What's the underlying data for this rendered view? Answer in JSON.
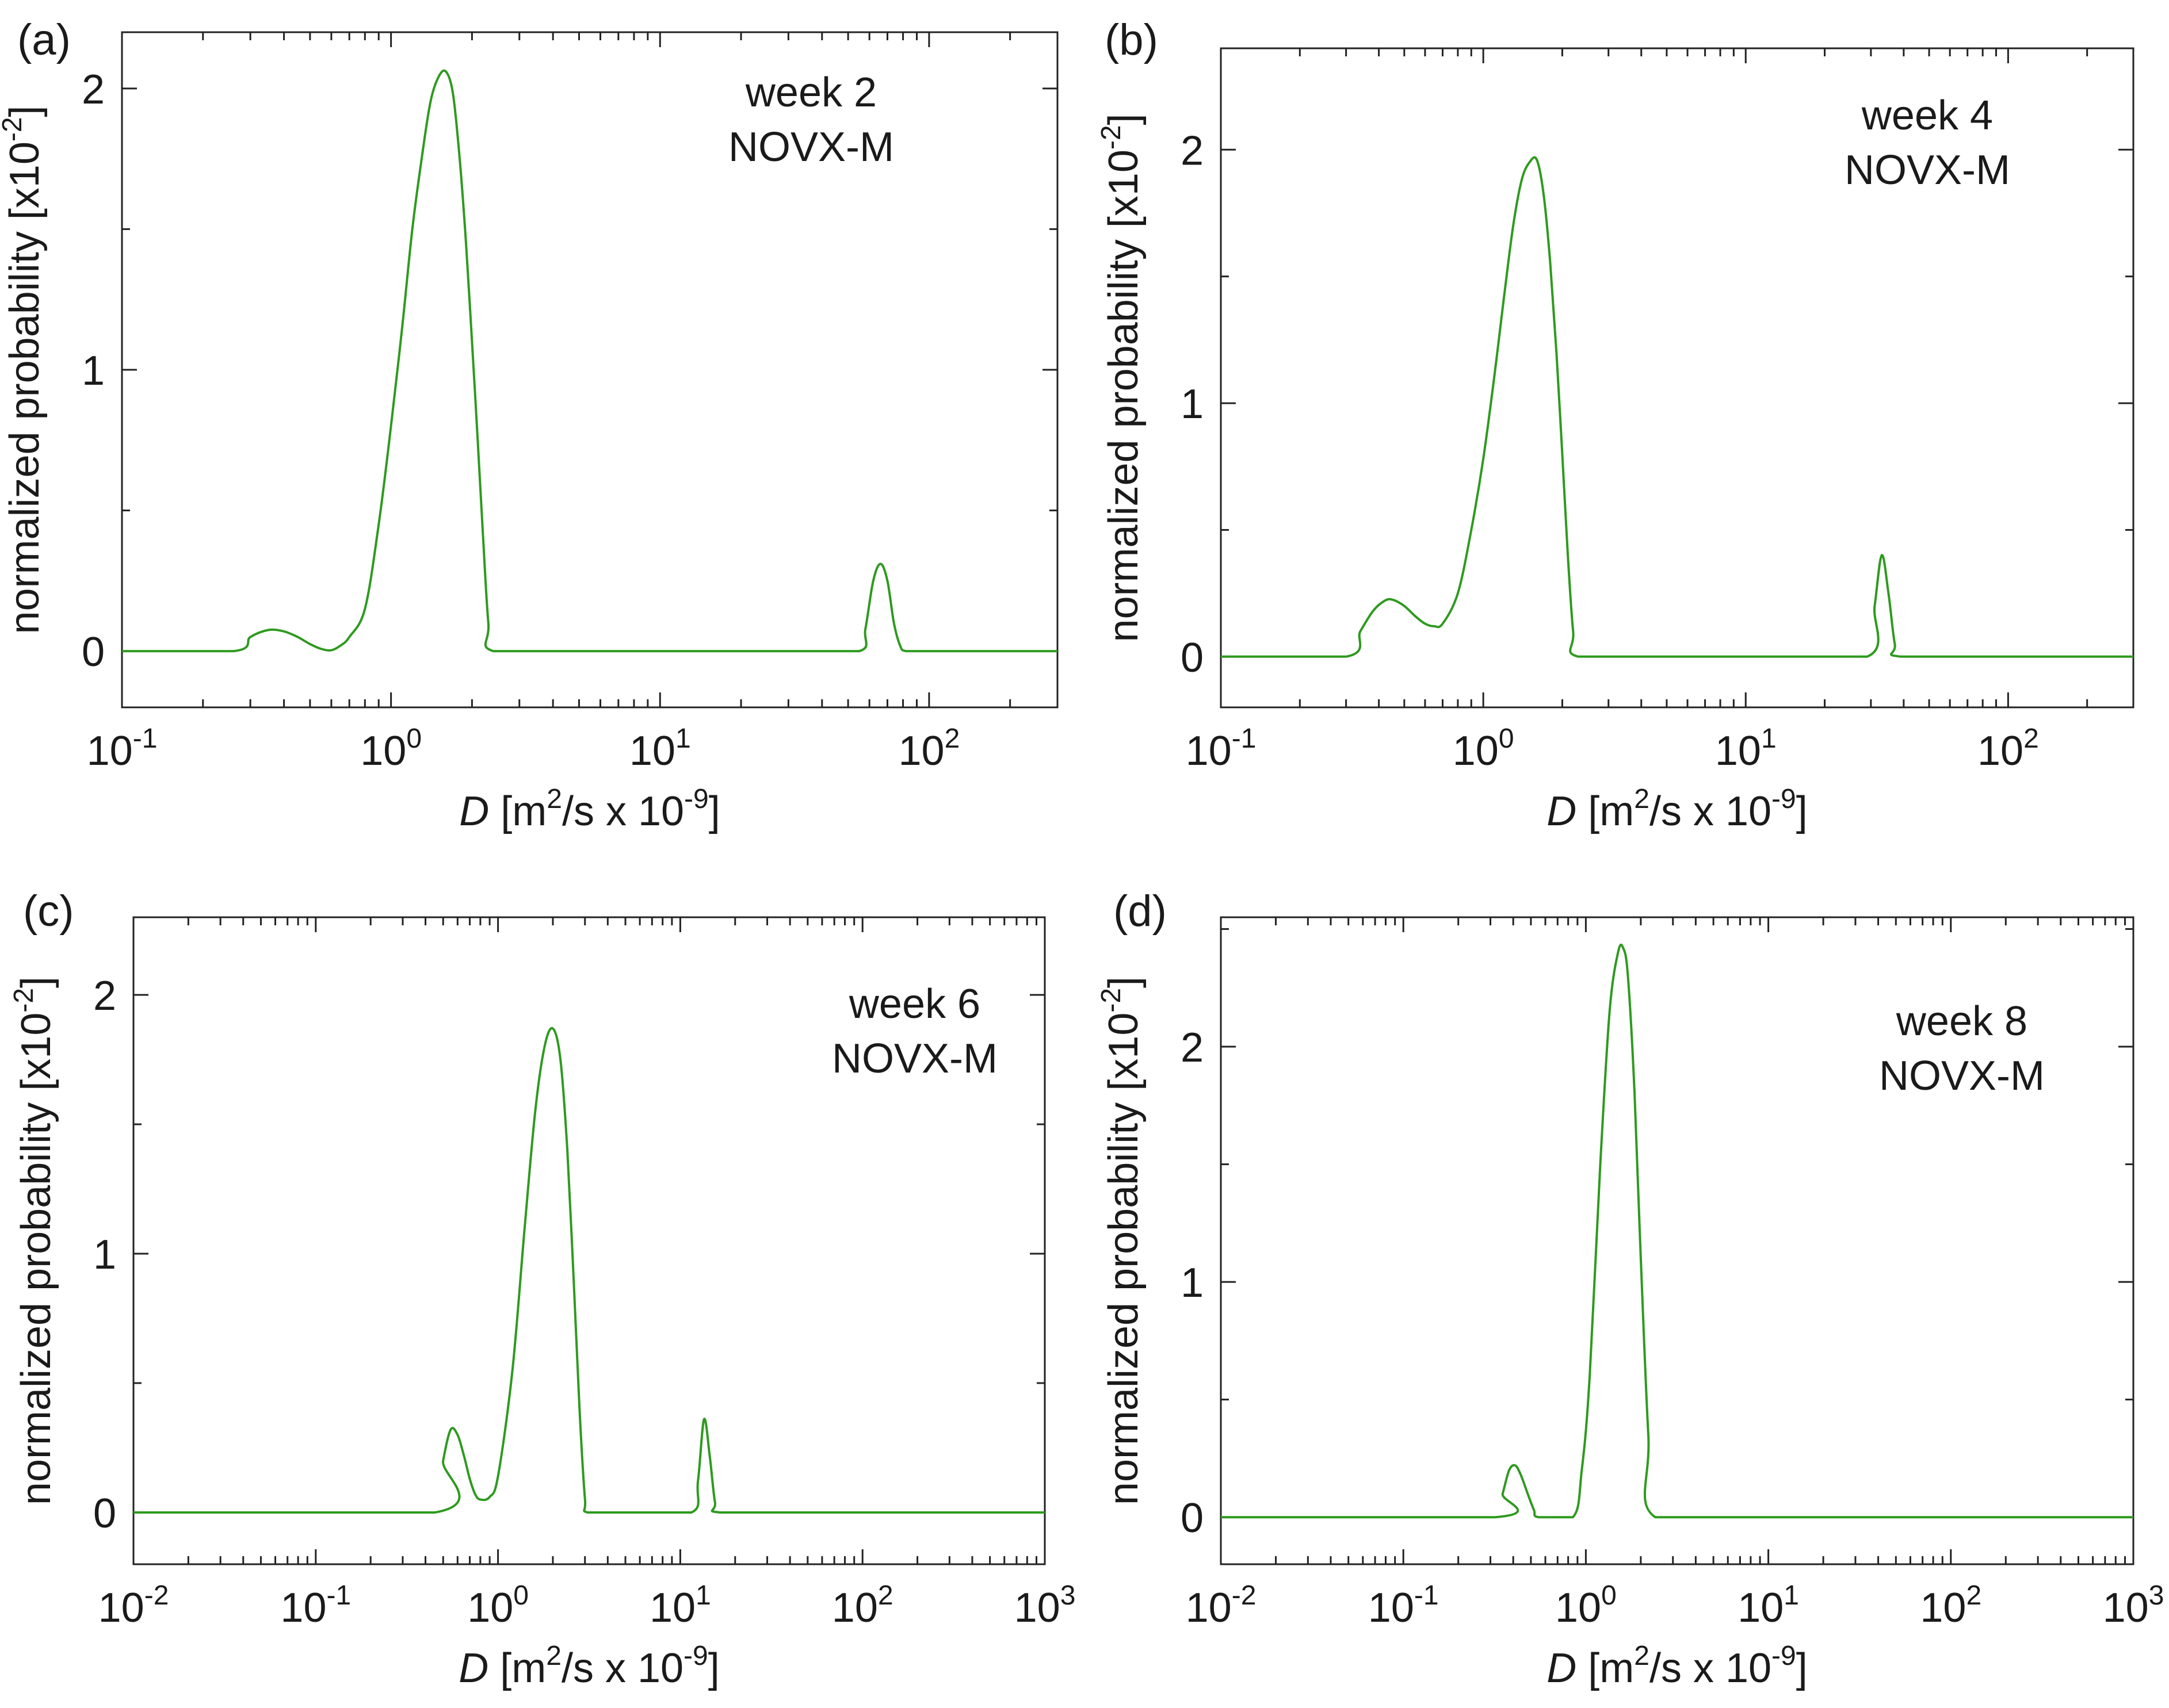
{
  "chart_data": [
    {
      "type": "line",
      "panel_label": "(a)",
      "annotation": [
        "week 2",
        "NOVX-M"
      ],
      "xlabel": {
        "symbol": "D",
        "text_a": " [m",
        "sup_a": "2",
        "text_b": "/s x 10",
        "sup_b": "-9",
        "text_c": "]"
      },
      "ylabel": {
        "text": "normalized probability [x10",
        "sup": "-2",
        "end": "]"
      },
      "xscale": "log",
      "xlim": [
        0.1,
        300
      ],
      "ylim": [
        -0.2,
        2.2
      ],
      "xticks": [
        {
          "base": "10",
          "exp": "-1",
          "value": 0.1
        },
        {
          "base": "10",
          "exp": "0",
          "value": 1
        },
        {
          "base": "10",
          "exp": "1",
          "value": 10
        },
        {
          "base": "10",
          "exp": "2",
          "value": 100
        }
      ],
      "yticks": [
        {
          "label": "0",
          "value": 0
        },
        {
          "label": "1",
          "value": 1
        },
        {
          "label": "2",
          "value": 2
        }
      ],
      "series": [
        {
          "name": "week 2 NOVX-M",
          "color": "#2e9a1f",
          "x": [
            0.1,
            0.26,
            0.3,
            0.35,
            0.4,
            0.45,
            0.5,
            0.55,
            0.6,
            0.65,
            0.7,
            0.8,
            0.9,
            1.0,
            1.1,
            1.2,
            1.3,
            1.4,
            1.5,
            1.6,
            1.7,
            1.8,
            1.9,
            2.0,
            2.1,
            2.2,
            2.3,
            2.4,
            5,
            10,
            30,
            55,
            58,
            62,
            66,
            70,
            74,
            78,
            82,
            100,
            300
          ],
          "y": [
            0,
            0,
            0.05,
            0.075,
            0.07,
            0.05,
            0.025,
            0.008,
            0.003,
            0.02,
            0.05,
            0.15,
            0.45,
            0.8,
            1.15,
            1.5,
            1.75,
            1.95,
            2.04,
            2.06,
            1.98,
            1.75,
            1.45,
            1.1,
            0.75,
            0.4,
            0.1,
            0,
            0,
            0,
            0,
            0,
            0.08,
            0.25,
            0.31,
            0.25,
            0.1,
            0.02,
            0,
            0,
            0
          ]
        }
      ]
    },
    {
      "type": "line",
      "panel_label": "(b)",
      "annotation": [
        "week 4",
        "NOVX-M"
      ],
      "xlabel": {
        "symbol": "D",
        "text_a": " [m",
        "sup_a": "2",
        "text_b": "/s x 10",
        "sup_b": "-9",
        "text_c": "]"
      },
      "ylabel": {
        "text": "normalized probability [x10",
        "sup": "-2",
        "end": "]"
      },
      "xscale": "log",
      "xlim": [
        0.1,
        300
      ],
      "ylim": [
        -0.2,
        2.4
      ],
      "xticks": [
        {
          "base": "10",
          "exp": "-1",
          "value": 0.1
        },
        {
          "base": "10",
          "exp": "0",
          "value": 1
        },
        {
          "base": "10",
          "exp": "1",
          "value": 10
        },
        {
          "base": "10",
          "exp": "2",
          "value": 100
        }
      ],
      "yticks": [
        {
          "label": "0",
          "value": 0
        },
        {
          "label": "1",
          "value": 1
        },
        {
          "label": "2",
          "value": 2
        }
      ],
      "series": [
        {
          "name": "week 4 NOVX-M",
          "color": "#2e9a1f",
          "x": [
            0.1,
            0.3,
            0.34,
            0.38,
            0.42,
            0.45,
            0.5,
            0.55,
            0.6,
            0.65,
            0.7,
            0.8,
            0.9,
            1.0,
            1.1,
            1.2,
            1.3,
            1.4,
            1.5,
            1.6,
            1.7,
            1.8,
            1.9,
            2.0,
            2.1,
            2.2,
            2.3,
            5,
            10,
            29,
            31,
            33,
            35,
            37,
            39,
            100,
            300
          ],
          "y": [
            0,
            0,
            0.1,
            0.18,
            0.22,
            0.225,
            0.2,
            0.16,
            0.13,
            0.12,
            0.13,
            0.25,
            0.5,
            0.78,
            1.1,
            1.42,
            1.7,
            1.88,
            1.95,
            1.96,
            1.82,
            1.55,
            1.2,
            0.8,
            0.4,
            0.1,
            0,
            0,
            0,
            0,
            0.2,
            0.4,
            0.25,
            0.05,
            0,
            0,
            0
          ]
        }
      ]
    },
    {
      "type": "line",
      "panel_label": "(c)",
      "annotation": [
        "week 6",
        "NOVX-M"
      ],
      "xlabel": {
        "symbol": "D",
        "text_a": " [m",
        "sup_a": "2",
        "text_b": "/s x 10",
        "sup_b": "-9",
        "text_c": "]"
      },
      "ylabel": {
        "text": "normalized probability [x10",
        "sup": "-2",
        "end": "]"
      },
      "xscale": "log",
      "xlim": [
        0.01,
        1000
      ],
      "ylim": [
        -0.2,
        2.3
      ],
      "xticks": [
        {
          "base": "10",
          "exp": "-2",
          "value": 0.01
        },
        {
          "base": "10",
          "exp": "-1",
          "value": 0.1
        },
        {
          "base": "10",
          "exp": "0",
          "value": 1
        },
        {
          "base": "10",
          "exp": "1",
          "value": 10
        },
        {
          "base": "10",
          "exp": "2",
          "value": 100
        },
        {
          "base": "10",
          "exp": "3",
          "value": 1000
        }
      ],
      "yticks": [
        {
          "label": "0",
          "value": 0
        },
        {
          "label": "1",
          "value": 1
        },
        {
          "label": "2",
          "value": 2
        }
      ],
      "series": [
        {
          "name": "week 6 NOVX-M",
          "color": "#2e9a1f",
          "x": [
            0.01,
            0.45,
            0.5,
            0.55,
            0.6,
            0.65,
            0.7,
            0.75,
            0.8,
            0.9,
            1.0,
            1.2,
            1.4,
            1.6,
            1.8,
            2.0,
            2.2,
            2.4,
            2.6,
            2.8,
            3.0,
            3.1,
            5,
            11.5,
            12.5,
            13.5,
            14.5,
            15.5,
            16.5,
            50,
            1000
          ],
          "y": [
            0,
            0,
            0.2,
            0.32,
            0.3,
            0.22,
            0.13,
            0.07,
            0.05,
            0.06,
            0.14,
            0.55,
            1.1,
            1.55,
            1.8,
            1.87,
            1.75,
            1.4,
            0.9,
            0.4,
            0.05,
            0,
            0,
            0,
            0.12,
            0.36,
            0.22,
            0.04,
            0,
            0,
            0
          ]
        }
      ]
    },
    {
      "type": "line",
      "panel_label": "(d)",
      "annotation": [
        "week 8",
        "NOVX-M"
      ],
      "xlabel": {
        "symbol": "D",
        "text_a": " [m",
        "sup_a": "2",
        "text_b": "/s x 10",
        "sup_b": "-9",
        "text_c": "]"
      },
      "ylabel": {
        "text": "normalized probability [x10",
        "sup": "-2",
        "end": "]"
      },
      "xscale": "log",
      "xlim": [
        0.01,
        1000
      ],
      "ylim": [
        -0.2,
        2.55
      ],
      "xticks": [
        {
          "base": "10",
          "exp": "-2",
          "value": 0.01
        },
        {
          "base": "10",
          "exp": "-1",
          "value": 0.1
        },
        {
          "base": "10",
          "exp": "0",
          "value": 1
        },
        {
          "base": "10",
          "exp": "1",
          "value": 10
        },
        {
          "base": "10",
          "exp": "2",
          "value": 100
        },
        {
          "base": "10",
          "exp": "3",
          "value": 1000
        }
      ],
      "yticks": [
        {
          "label": "0",
          "value": 0
        },
        {
          "label": "1",
          "value": 1
        },
        {
          "label": "2",
          "value": 2
        }
      ],
      "series": [
        {
          "name": "week 8 NOVX-M",
          "color": "#2e9a1f",
          "x": [
            0.01,
            0.32,
            0.35,
            0.38,
            0.41,
            0.44,
            0.48,
            0.52,
            0.55,
            0.85,
            0.95,
            1.05,
            1.2,
            1.35,
            1.5,
            1.6,
            1.7,
            1.85,
            2.0,
            2.2,
            2.4,
            10,
            1000
          ],
          "y": [
            0,
            0,
            0.1,
            0.2,
            0.22,
            0.18,
            0.1,
            0.03,
            0,
            0,
            0.2,
            0.6,
            1.5,
            2.15,
            2.4,
            2.42,
            2.3,
            1.8,
            1.1,
            0.35,
            0,
            0,
            0
          ]
        }
      ]
    }
  ]
}
